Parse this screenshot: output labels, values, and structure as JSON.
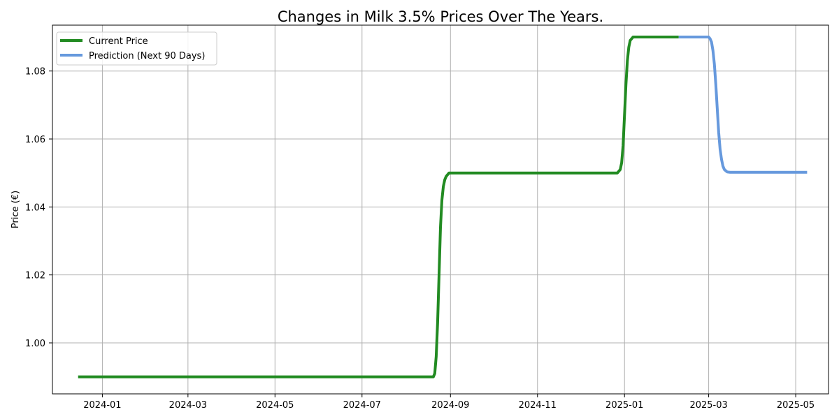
{
  "chart_data": {
    "type": "line",
    "title": "Changes in Milk 3.5% Prices Over The Years.",
    "xlabel": "",
    "ylabel": "Price (€)",
    "xlim": [
      "2023-11-27",
      "2025-05-24"
    ],
    "ylim": [
      0.985,
      1.0935
    ],
    "x_ticks": [
      "2024-01-01",
      "2024-03-01",
      "2024-05-01",
      "2024-07-01",
      "2024-09-01",
      "2024-11-01",
      "2025-01-01",
      "2025-03-01",
      "2025-05-01"
    ],
    "x_tick_labels": [
      "2024-01",
      "2024-03",
      "2024-05",
      "2024-07",
      "2024-09",
      "2024-11",
      "2025-01",
      "2025-03",
      "2025-05"
    ],
    "y_ticks": [
      1.0,
      1.02,
      1.04,
      1.06,
      1.08
    ],
    "y_tick_labels": [
      "1.00",
      "1.02",
      "1.04",
      "1.06",
      "1.08"
    ],
    "grid": true,
    "legend": "top-left",
    "series": [
      {
        "name": "Current Price",
        "color": "#228B22",
        "x": [
          "2023-12-15",
          "2024-08-20",
          "2024-08-21",
          "2024-08-22",
          "2024-08-23",
          "2024-08-24",
          "2024-08-25",
          "2024-08-26",
          "2024-08-27",
          "2024-08-28",
          "2024-08-29",
          "2024-08-31",
          "2024-09-02",
          "2024-12-27",
          "2024-12-29",
          "2024-12-30",
          "2024-12-31",
          "2025-01-01",
          "2025-01-02",
          "2025-01-03",
          "2025-01-04",
          "2025-01-05",
          "2025-01-07",
          "2025-01-09",
          "2025-02-08"
        ],
        "values": [
          0.99,
          0.99,
          0.991,
          0.996,
          1.006,
          1.02,
          1.034,
          1.042,
          1.046,
          1.048,
          1.049,
          1.05,
          1.05,
          1.05,
          1.051,
          1.053,
          1.058,
          1.067,
          1.076,
          1.083,
          1.087,
          1.089,
          1.09,
          1.09,
          1.09
        ]
      },
      {
        "name": "Prediction (Next 90 Days)",
        "color": "#6699DD",
        "x": [
          "2025-02-08",
          "2025-03-01",
          "2025-03-02",
          "2025-03-03",
          "2025-03-04",
          "2025-03-05",
          "2025-03-06",
          "2025-03-07",
          "2025-03-08",
          "2025-03-09",
          "2025-03-10",
          "2025-03-11",
          "2025-03-12",
          "2025-03-14",
          "2025-03-16",
          "2025-05-09"
        ],
        "values": [
          1.09,
          1.09,
          1.0895,
          1.0885,
          1.086,
          1.082,
          1.076,
          1.069,
          1.062,
          1.057,
          1.054,
          1.052,
          1.051,
          1.0503,
          1.0502,
          1.0502
        ]
      }
    ]
  }
}
